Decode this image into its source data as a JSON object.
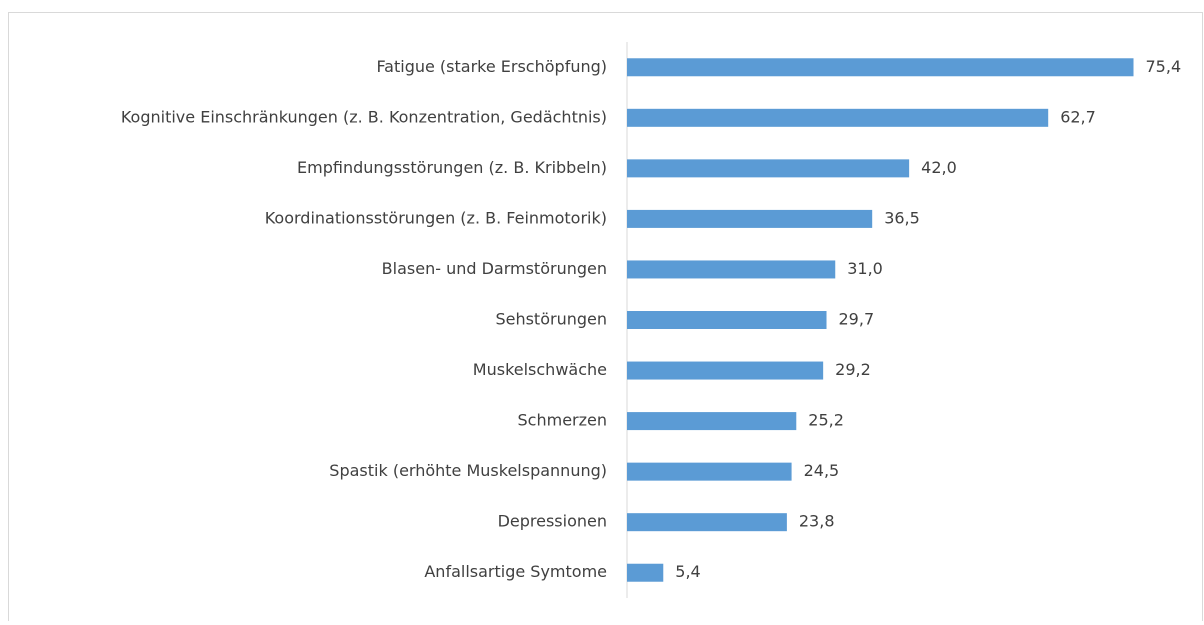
{
  "chart_data": {
    "type": "bar",
    "orientation": "horizontal",
    "categories": [
      "Fatigue (starke Erschöpfung)",
      "Kognitive Einschränkungen (z. B. Konzentration, Gedächtnis)",
      "Empfindungsstörungen (z. B. Kribbeln)",
      "Koordinationsstörungen (z. B. Feinmotorik)",
      "Blasen- und Darmstörungen",
      "Sehstörungen",
      "Muskelschwäche",
      "Schmerzen",
      "Spastik (erhöhte Muskelspannung)",
      "Depressionen",
      "Anfallsartige Symtome"
    ],
    "values": [
      75.4,
      62.7,
      42.0,
      36.5,
      31.0,
      29.7,
      29.2,
      25.2,
      24.5,
      23.8,
      5.4
    ],
    "value_labels": [
      "75,4",
      "62,7",
      "42,0",
      "36,5",
      "31,0",
      "29,7",
      "29,2",
      "25,2",
      "24,5",
      "23,8",
      "5,4"
    ],
    "color": "#5b9bd5",
    "xlim": [
      0,
      85
    ]
  }
}
